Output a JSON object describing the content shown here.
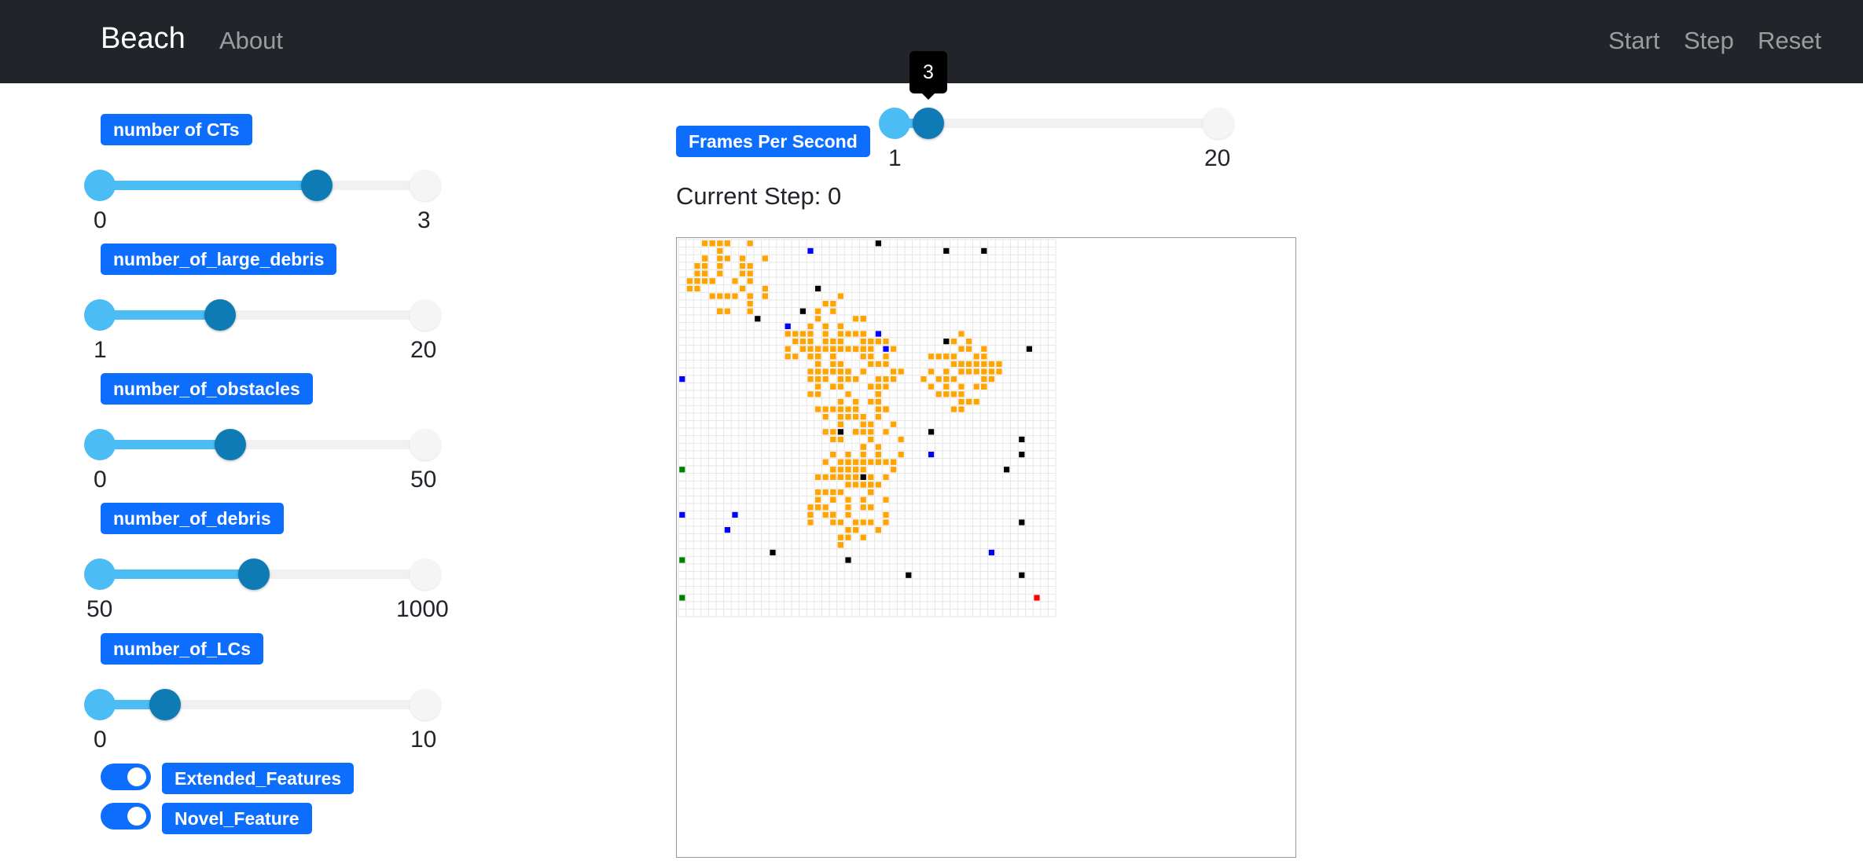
{
  "navbar": {
    "brand": "Beach",
    "about": "About",
    "start": "Start",
    "step": "Step",
    "reset": "Reset"
  },
  "params": [
    {
      "label": "number of CTs",
      "min": "0",
      "max": "3",
      "value": 2,
      "min_val": 0,
      "max_val": 3
    },
    {
      "label": "number_of_large_debris",
      "min": "1",
      "max": "20",
      "value": 8,
      "min_val": 1,
      "max_val": 20
    },
    {
      "label": "number_of_obstacles",
      "min": "0",
      "max": "50",
      "value": 20,
      "min_val": 0,
      "max_val": 50
    },
    {
      "label": "number_of_debris",
      "min": "50",
      "max": "1000",
      "value": 500,
      "min_val": 50,
      "max_val": 1000
    },
    {
      "label": "number_of_LCs",
      "min": "0",
      "max": "10",
      "value": 2,
      "min_val": 0,
      "max_val": 10
    }
  ],
  "toggles": [
    {
      "label": "Extended_Features",
      "on": true
    },
    {
      "label": "Novel_Feature",
      "on": true
    }
  ],
  "fps": {
    "label": "Frames Per Second",
    "min": "1",
    "max": "20",
    "value": 3,
    "min_val": 1,
    "max_val": 20,
    "tooltip": "3"
  },
  "current_step": "Current Step: 0",
  "colors": {
    "debris": "#ffa500",
    "obstacle": "#000000",
    "agent": "#0000ff",
    "green": "#008000",
    "red": "#ff0000",
    "gridline": "#e6e6e6"
  }
}
